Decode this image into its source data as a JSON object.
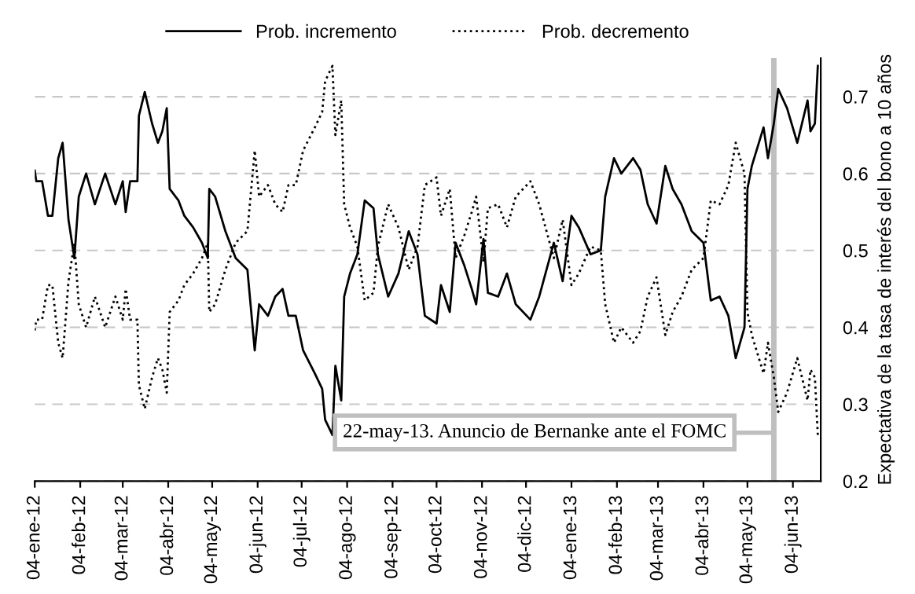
{
  "chart_data": {
    "type": "line",
    "ylabel": "Expectativa de la tasa de interés del bono a 10 años",
    "x": [
      "2012-01-04",
      "2012-01-05",
      "2012-01-09",
      "2012-01-13",
      "2012-01-16",
      "2012-01-20",
      "2012-01-23",
      "2012-01-27",
      "2012-01-31",
      "2012-02-03",
      "2012-02-08",
      "2012-02-14",
      "2012-02-21",
      "2012-02-28",
      "2012-03-04",
      "2012-03-06",
      "2012-03-09",
      "2012-03-14",
      "2012-03-15",
      "2012-03-19",
      "2012-03-24",
      "2012-03-28",
      "2012-03-31",
      "2012-04-03",
      "2012-04-05",
      "2012-04-11",
      "2012-04-15",
      "2012-04-21",
      "2012-04-27",
      "2012-05-01",
      "2012-05-02",
      "2012-05-06",
      "2012-05-13",
      "2012-05-20",
      "2012-05-28",
      "2012-06-02",
      "2012-06-05",
      "2012-06-11",
      "2012-06-16",
      "2012-06-21",
      "2012-06-25",
      "2012-06-30",
      "2012-07-05",
      "2012-07-13",
      "2012-07-18",
      "2012-07-20",
      "2012-07-25",
      "2012-07-27",
      "2012-07-31",
      "2012-08-02",
      "2012-08-06",
      "2012-08-11",
      "2012-08-16",
      "2012-08-22",
      "2012-08-25",
      "2012-09-01",
      "2012-09-08",
      "2012-09-15",
      "2012-09-21",
      "2012-09-26",
      "2012-10-04",
      "2012-10-07",
      "2012-10-13",
      "2012-10-17",
      "2012-10-23",
      "2012-10-28",
      "2012-10-31",
      "2012-11-05",
      "2012-11-08",
      "2012-11-15",
      "2012-11-21",
      "2012-11-27",
      "2012-12-07",
      "2012-12-13",
      "2012-12-18",
      "2012-12-23",
      "2012-12-29",
      "2013-01-04",
      "2013-01-09",
      "2013-01-17",
      "2013-01-24",
      "2013-01-27",
      "2013-02-02",
      "2013-02-07",
      "2013-02-15",
      "2013-02-20",
      "2013-02-25",
      "2013-03-03",
      "2013-03-09",
      "2013-03-14",
      "2013-03-20",
      "2013-03-27",
      "2013-04-04",
      "2013-04-09",
      "2013-04-15",
      "2013-04-21",
      "2013-04-26",
      "2013-05-02",
      "2013-05-04",
      "2013-05-07",
      "2013-05-15",
      "2013-05-18",
      "2013-05-22",
      "2013-05-25",
      "2013-05-31",
      "2013-06-07",
      "2013-06-14",
      "2013-06-16",
      "2013-06-19",
      "2013-06-21"
    ],
    "series": [
      {
        "name": "Prob. incremento",
        "color": "#000000",
        "line_style": "solid",
        "values": [
          0.604,
          0.59,
          0.59,
          0.545,
          0.545,
          0.62,
          0.64,
          0.54,
          0.49,
          0.57,
          0.6,
          0.56,
          0.6,
          0.56,
          0.59,
          0.55,
          0.59,
          0.59,
          0.675,
          0.706,
          0.665,
          0.64,
          0.655,
          0.685,
          0.58,
          0.565,
          0.545,
          0.53,
          0.51,
          0.49,
          0.58,
          0.57,
          0.525,
          0.49,
          0.475,
          0.37,
          0.43,
          0.415,
          0.44,
          0.45,
          0.415,
          0.415,
          0.37,
          0.34,
          0.32,
          0.28,
          0.26,
          0.35,
          0.305,
          0.44,
          0.47,
          0.495,
          0.565,
          0.555,
          0.495,
          0.44,
          0.47,
          0.525,
          0.495,
          0.415,
          0.405,
          0.455,
          0.42,
          0.51,
          0.48,
          0.45,
          0.43,
          0.515,
          0.445,
          0.44,
          0.47,
          0.43,
          0.41,
          0.44,
          0.475,
          0.51,
          0.46,
          0.545,
          0.53,
          0.495,
          0.5,
          0.57,
          0.62,
          0.6,
          0.62,
          0.605,
          0.56,
          0.535,
          0.61,
          0.58,
          0.56,
          0.525,
          0.51,
          0.435,
          0.44,
          0.415,
          0.36,
          0.4,
          0.58,
          0.61,
          0.66,
          0.62,
          0.665,
          0.71,
          0.685,
          0.64,
          0.695,
          0.655,
          0.665,
          0.74
        ]
      },
      {
        "name": "Prob. decremento",
        "color": "#000000",
        "line_style": "dotted",
        "values": [
          0.396,
          0.41,
          0.41,
          0.455,
          0.455,
          0.38,
          0.36,
          0.46,
          0.51,
          0.43,
          0.4,
          0.44,
          0.4,
          0.44,
          0.41,
          0.45,
          0.41,
          0.41,
          0.325,
          0.294,
          0.335,
          0.36,
          0.345,
          0.315,
          0.42,
          0.435,
          0.455,
          0.47,
          0.49,
          0.51,
          0.42,
          0.43,
          0.475,
          0.51,
          0.525,
          0.63,
          0.57,
          0.585,
          0.56,
          0.55,
          0.585,
          0.585,
          0.63,
          0.66,
          0.68,
          0.72,
          0.74,
          0.65,
          0.695,
          0.56,
          0.53,
          0.505,
          0.435,
          0.445,
          0.505,
          0.56,
          0.53,
          0.475,
          0.505,
          0.585,
          0.595,
          0.545,
          0.58,
          0.49,
          0.52,
          0.55,
          0.57,
          0.485,
          0.555,
          0.56,
          0.53,
          0.57,
          0.59,
          0.56,
          0.525,
          0.49,
          0.54,
          0.455,
          0.47,
          0.505,
          0.5,
          0.43,
          0.38,
          0.4,
          0.38,
          0.395,
          0.44,
          0.465,
          0.39,
          0.42,
          0.44,
          0.475,
          0.49,
          0.565,
          0.56,
          0.585,
          0.64,
          0.6,
          0.42,
          0.39,
          0.34,
          0.38,
          0.335,
          0.29,
          0.315,
          0.36,
          0.305,
          0.345,
          0.335,
          0.26
        ]
      }
    ],
    "xlim": [
      "2012-01-04",
      "2013-06-23"
    ],
    "xticks": [
      {
        "value": "2012-01-04",
        "label": "04-ene-12"
      },
      {
        "value": "2012-02-04",
        "label": "04-feb-12"
      },
      {
        "value": "2012-03-04",
        "label": "04-mar-12"
      },
      {
        "value": "2012-04-04",
        "label": "04-abr-12"
      },
      {
        "value": "2012-05-04",
        "label": "04-may-12"
      },
      {
        "value": "2012-06-04",
        "label": "04-jun-12"
      },
      {
        "value": "2012-07-04",
        "label": "04-jul-12"
      },
      {
        "value": "2012-08-04",
        "label": "04-ago-12"
      },
      {
        "value": "2012-09-04",
        "label": "04-sep-12"
      },
      {
        "value": "2012-10-04",
        "label": "04-oct-12"
      },
      {
        "value": "2012-11-04",
        "label": "04-nov-12"
      },
      {
        "value": "2012-12-04",
        "label": "04-dic-12"
      },
      {
        "value": "2013-01-04",
        "label": "04-ene-13"
      },
      {
        "value": "2013-02-04",
        "label": "04-feb-13"
      },
      {
        "value": "2013-03-04",
        "label": "04-mar-13"
      },
      {
        "value": "2013-04-04",
        "label": "04-abr-13"
      },
      {
        "value": "2013-05-04",
        "label": "04-may-13"
      },
      {
        "value": "2013-06-04",
        "label": "04-jun-13"
      }
    ],
    "ylim": [
      0.2,
      0.75
    ],
    "yticks": [
      0.2,
      0.3,
      0.4,
      0.5,
      0.6,
      0.7
    ],
    "ref_lines": [
      {
        "axis": "x",
        "value": "2013-05-22",
        "label": "22-may-13. Anuncio de Bernanke ante el FOMC",
        "color": "#bfbfbf"
      }
    ],
    "grid": "y",
    "legend": "top"
  }
}
